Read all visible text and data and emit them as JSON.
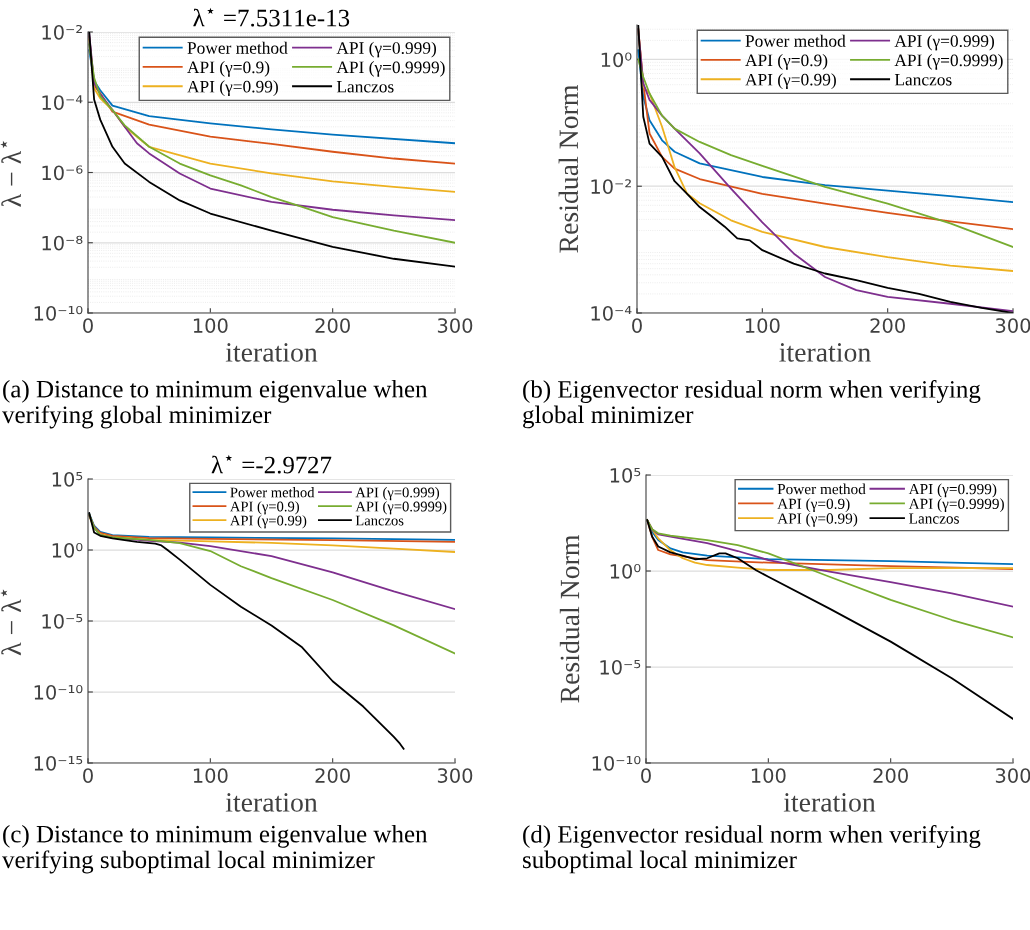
{
  "chart_data": [
    {
      "type": "line",
      "title": "λ$^{⋆}$ =7.5311e-13",
      "xlabel": "iteration",
      "ylabel": "λ − λ$^{⋆}$",
      "log": "y",
      "xlim": [
        0,
        300
      ],
      "xticks": [
        0,
        100,
        200,
        300
      ],
      "ylim": [
        1e-10,
        0.01
      ],
      "yticks": [
        {
          "value": 1e-10,
          "label": "10⁻¹⁰"
        },
        {
          "value": 1e-08,
          "label": "10⁻⁸"
        },
        {
          "value": 1e-06,
          "label": "10⁻⁶"
        },
        {
          "value": 0.0001,
          "label": "10⁻⁴"
        },
        {
          "value": 0.01,
          "label": "10⁻²"
        }
      ],
      "grid": "y",
      "legend": "top right",
      "annotations": [
        "(a) Distance to minimum eigenvalue when verifying global minimizer"
      ],
      "series": [
        {
          "name": "Power method",
          "color": "#0072bd",
          "x": [
            1,
            5,
            10,
            20,
            50,
            100,
            150,
            200,
            300
          ],
          "values": [
            0.003,
            0.0004,
            0.00022,
            8e-05,
            4e-05,
            2.5e-05,
            1.7e-05,
            1.2e-05,
            6.8e-06
          ]
        },
        {
          "name": "API (γ=0.9)",
          "color": "#d95319",
          "x": [
            1,
            5,
            10,
            20,
            50,
            100,
            150,
            200,
            250,
            300
          ],
          "values": [
            0.0075,
            0.0003,
            0.00018,
            5.4e-05,
            2.3e-05,
            1.05e-05,
            6.5e-06,
            3.9e-06,
            2.5e-06,
            1.8e-06
          ]
        },
        {
          "name": "API (γ=0.99)",
          "color": "#edb120",
          "x": [
            1,
            5,
            10,
            20,
            30,
            50,
            100,
            150,
            200,
            250,
            300
          ],
          "values": [
            0.006,
            0.00025,
            0.00013,
            6e-05,
            2e-05,
            5.4e-06,
            1.8e-06,
            9.4e-07,
            5.6e-07,
            3.9e-07,
            2.8e-07
          ]
        },
        {
          "name": "API (γ=0.999)",
          "color": "#7e2f8e",
          "x": [
            1,
            5,
            10,
            20,
            30,
            40,
            50,
            75,
            100,
            150,
            200,
            250,
            300
          ],
          "values": [
            0.009,
            0.00035,
            0.00017,
            6e-05,
            2e-05,
            6.8e-06,
            3.5e-06,
            9.4e-07,
            3.5e-07,
            1.45e-07,
            8.7e-08,
            6e-08,
            4.4e-08
          ]
        },
        {
          "name": "API (γ=0.9999)",
          "color": "#77ac30",
          "x": [
            1,
            5,
            10,
            20,
            30,
            50,
            75,
            100,
            125,
            150,
            175,
            200,
            250,
            300
          ],
          "values": [
            0.0045,
            0.0005,
            0.00015,
            6e-05,
            2.2e-05,
            5.4e-06,
            1.8e-06,
            8.3e-07,
            4.3e-07,
            2e-07,
            1.05e-07,
            5.4e-08,
            2.2e-08,
            1e-08
          ]
        },
        {
          "name": "Lanczos",
          "color": "#000000",
          "x": [
            1,
            5,
            10,
            20,
            30,
            50,
            75,
            100,
            150,
            200,
            250,
            300
          ],
          "values": [
            0.01,
            0.00012,
            3.2e-05,
            5.4e-06,
            1.8e-06,
            5.4e-07,
            1.6e-07,
            6.8e-08,
            2.2e-08,
            7.6e-09,
            3.5e-09,
            2.1e-09
          ]
        }
      ]
    },
    {
      "type": "line",
      "xlabel": "iteration",
      "ylabel": "Residual Norm",
      "log": "y",
      "xlim": [
        0,
        300
      ],
      "xticks": [
        0,
        100,
        200,
        300
      ],
      "ylim": [
        0.0001,
        3.5
      ],
      "yticks": [
        {
          "value": 0.0001,
          "label": "10⁻⁴"
        },
        {
          "value": 0.01,
          "label": "10⁻²"
        },
        {
          "value": 1,
          "label": "10⁰"
        }
      ],
      "grid": "y",
      "legend": "top right",
      "annotations": [
        "(b) Eigenvector residual norm when verifying global minimizer"
      ],
      "series": [
        {
          "name": "Power method",
          "color": "#0072bd",
          "x": [
            1,
            5,
            10,
            20,
            30,
            50,
            100,
            150,
            200,
            250,
            300
          ],
          "values": [
            1.4,
            0.26,
            0.11,
            0.053,
            0.035,
            0.023,
            0.014,
            0.0104,
            0.0085,
            0.007,
            0.0056
          ]
        },
        {
          "name": "API (γ=0.9)",
          "color": "#d95319",
          "x": [
            1,
            5,
            10,
            20,
            30,
            50,
            100,
            150,
            200,
            250,
            300
          ],
          "values": [
            3,
            0.42,
            0.068,
            0.029,
            0.019,
            0.013,
            0.0076,
            0.0053,
            0.0038,
            0.0028,
            0.0021
          ]
        },
        {
          "name": "API (γ=0.99)",
          "color": "#edb120",
          "x": [
            1,
            5,
            10,
            20,
            30,
            40,
            50,
            75,
            100,
            150,
            200,
            250,
            300
          ],
          "values": [
            3,
            0.37,
            0.29,
            0.087,
            0.02,
            0.0076,
            0.0054,
            0.0029,
            0.0019,
            0.0011,
            0.00076,
            0.00056,
            0.00046
          ]
        },
        {
          "name": "API (γ=0.999)",
          "color": "#7e2f8e",
          "x": [
            1,
            5,
            10,
            20,
            30,
            50,
            75,
            100,
            125,
            150,
            175,
            200,
            250,
            300
          ],
          "values": [
            3,
            0.42,
            0.23,
            0.13,
            0.081,
            0.033,
            0.0092,
            0.0027,
            0.00087,
            0.00037,
            0.00023,
            0.00018,
            0.00014,
            0.000107
          ]
        },
        {
          "name": "API (γ=0.9999)",
          "color": "#77ac30",
          "x": [
            1,
            5,
            10,
            20,
            30,
            50,
            75,
            100,
            150,
            200,
            250,
            300
          ],
          "values": [
            1,
            0.53,
            0.29,
            0.13,
            0.081,
            0.05,
            0.031,
            0.021,
            0.0098,
            0.0053,
            0.0026,
            0.0011
          ]
        },
        {
          "name": "Lanczos",
          "color": "#000000",
          "x": [
            1,
            5,
            10,
            20,
            30,
            40,
            50,
            60,
            70,
            80,
            90,
            100,
            125,
            150,
            175,
            200,
            225,
            250,
            275,
            300
          ],
          "values": [
            3.5,
            0.125,
            0.047,
            0.029,
            0.012,
            0.0076,
            0.0047,
            0.0033,
            0.0023,
            0.0015,
            0.0014,
            0.00098,
            0.0006,
            0.00042,
            0.00033,
            0.00025,
            0.0002,
            0.00015,
            0.00012,
            0.0001
          ]
        }
      ]
    },
    {
      "type": "line",
      "title": "λ$^{⋆}$ =-2.9727",
      "xlabel": "iteration",
      "ylabel": "λ − λ$^{⋆}$",
      "log": "y",
      "xlim": [
        0,
        300
      ],
      "xticks": [
        0,
        100,
        200,
        300
      ],
      "ylim": [
        1e-15,
        100000
      ],
      "yticks": [
        {
          "value": 1e-15,
          "label": "10⁻¹⁵"
        },
        {
          "value": 1e-10,
          "label": "10⁻¹⁰"
        },
        {
          "value": 1e-05,
          "label": "10⁻⁵"
        },
        {
          "value": 1,
          "label": "10⁰"
        },
        {
          "value": 100000,
          "label": "10⁵"
        }
      ],
      "grid": "y",
      "legend": "top right",
      "annotations": [
        "(c) Distance to minimum eigenvalue when verifying suboptimal local minimizer"
      ],
      "series": [
        {
          "name": "Power method",
          "color": "#0072bd",
          "x": [
            1,
            5,
            10,
            20,
            50,
            100,
            200,
            300
          ],
          "values": [
            355,
            51,
            19,
            11,
            8.5,
            7.6,
            6.5,
            5.2
          ]
        },
        {
          "name": "API (γ=0.9)",
          "color": "#d95319",
          "x": [
            1,
            5,
            10,
            20,
            50,
            100,
            200,
            300
          ],
          "values": [
            300,
            45,
            16,
            10,
            6.8,
            6,
            5,
            3.7
          ]
        },
        {
          "name": "API (γ=0.99)",
          "color": "#edb120",
          "x": [
            1,
            5,
            10,
            20,
            50,
            100,
            150,
            200,
            250,
            300
          ],
          "values": [
            250,
            35,
            13,
            8,
            5.2,
            4,
            3.2,
            2.1,
            1.25,
            0.72
          ]
        },
        {
          "name": "API (γ=0.999)",
          "color": "#7e2f8e",
          "x": [
            1,
            5,
            10,
            20,
            50,
            75,
            100,
            150,
            200,
            250,
            300
          ],
          "values": [
            280,
            40,
            11,
            7.6,
            4.4,
            3.3,
            1.9,
            0.37,
            0.027,
            0.0012,
            6.8e-05
          ]
        },
        {
          "name": "API (γ=0.9999)",
          "color": "#77ac30",
          "x": [
            1,
            5,
            10,
            20,
            50,
            75,
            100,
            125,
            150,
            200,
            250,
            300
          ],
          "values": [
            320,
            38,
            11,
            7.6,
            5.2,
            3,
            0.85,
            0.072,
            0.0105,
            0.0003,
            4.9e-06,
            5.1e-08
          ]
        },
        {
          "name": "Lanczos",
          "color": "#000000",
          "x": [
            1,
            5,
            10,
            20,
            40,
            55,
            60,
            65,
            75,
            100,
            125,
            150,
            175,
            200,
            225,
            250,
            255,
            258
          ],
          "values": [
            400,
            17,
            10,
            6.5,
            3.7,
            2.8,
            2.1,
            1,
            0.21,
            0.0035,
            0.0001,
            4.9e-06,
            1.4e-07,
            5.7e-10,
            9.5e-12,
            6.8e-14,
            2.3e-14,
            1e-14
          ]
        }
      ]
    },
    {
      "type": "line",
      "xlabel": "iteration",
      "ylabel": "Residual Norm",
      "log": "y",
      "xlim": [
        0,
        300
      ],
      "xticks": [
        0,
        100,
        200,
        300
      ],
      "ylim": [
        1e-10,
        100000
      ],
      "yticks": [
        {
          "value": 1e-10,
          "label": "10⁻¹⁰"
        },
        {
          "value": 1e-05,
          "label": "10⁻⁵"
        },
        {
          "value": 1,
          "label": "10⁰"
        },
        {
          "value": 100000,
          "label": "10⁵"
        }
      ],
      "grid": "y",
      "legend": "top right",
      "annotations": [
        "(d) Eigenvector residual norm when verifying suboptimal local minimizer"
      ],
      "series": [
        {
          "name": "Power method",
          "color": "#0072bd",
          "x": [
            1,
            5,
            10,
            20,
            30,
            50,
            100,
            150,
            200,
            300
          ],
          "values": [
            450,
            112,
            41,
            15,
            9.4,
            6.3,
            4.2,
            3.7,
            3.3,
            2.3
          ]
        },
        {
          "name": "API (γ=0.9)",
          "color": "#d95319",
          "x": [
            1,
            5,
            10,
            20,
            50,
            100,
            200,
            300
          ],
          "values": [
            450,
            60,
            12.4,
            7.4,
            3.7,
            2.7,
            1.8,
            1.27
          ]
        },
        {
          "name": "API (γ=0.99)",
          "color": "#edb120",
          "x": [
            1,
            5,
            10,
            20,
            30,
            40,
            50,
            75,
            100,
            150,
            200,
            300
          ],
          "values": [
            450,
            150,
            50,
            12,
            4.6,
            2.7,
            2.05,
            1.5,
            1.13,
            1.13,
            1.4,
            1.4
          ]
        },
        {
          "name": "API (γ=0.999)",
          "color": "#7e2f8e",
          "x": [
            1,
            5,
            10,
            20,
            50,
            75,
            100,
            150,
            200,
            250,
            300
          ],
          "values": [
            450,
            150,
            81,
            62,
            28,
            11,
            3.7,
            0.93,
            0.26,
            0.069,
            0.014
          ]
        },
        {
          "name": "API (γ=0.9999)",
          "color": "#77ac30",
          "x": [
            1,
            5,
            10,
            20,
            50,
            75,
            100,
            125,
            150,
            200,
            250,
            300
          ],
          "values": [
            450,
            150,
            92,
            70,
            41,
            22,
            8.3,
            2.05,
            0.5,
            0.031,
            0.0028,
            0.00035
          ]
        },
        {
          "name": "Lanczos",
          "color": "#000000",
          "x": [
            1,
            5,
            10,
            20,
            30,
            40,
            50,
            60,
            65,
            75,
            90,
            100,
            150,
            200,
            250,
            300
          ],
          "values": [
            450,
            62,
            19,
            9.4,
            6.3,
            4.1,
            4.6,
            8.3,
            8.3,
            4.6,
            1.1,
            0.5,
            0.011,
            0.00021,
            2.6e-06,
            2e-08
          ]
        }
      ]
    }
  ]
}
